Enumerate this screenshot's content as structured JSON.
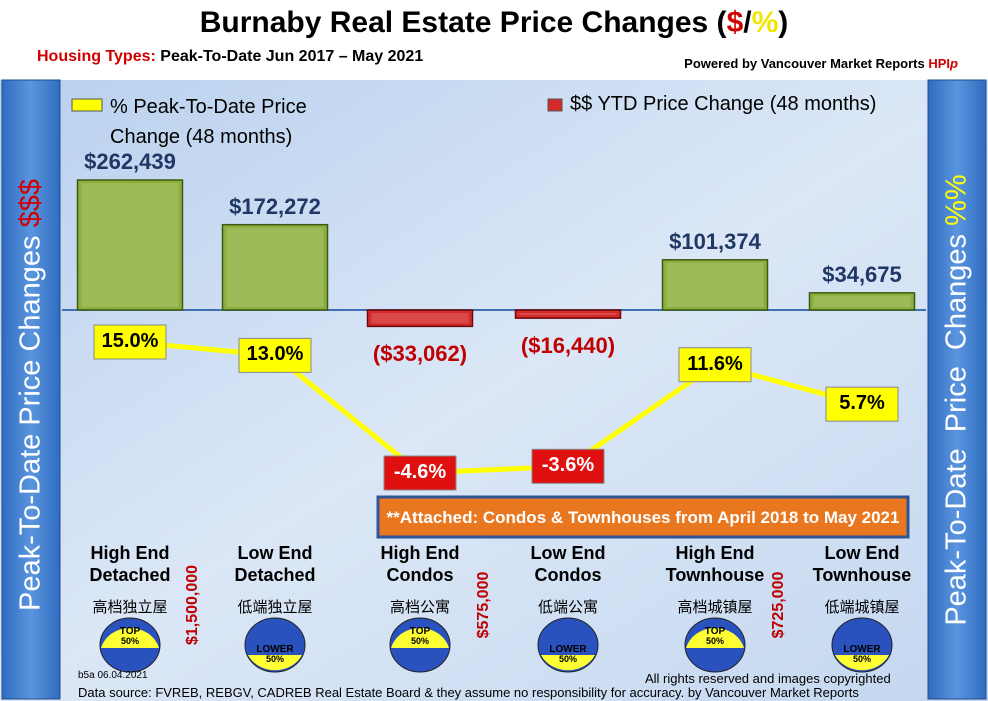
{
  "chart_data": {
    "type": "combo",
    "title": [
      "Burnaby Real Estate Price Changes (",
      "$",
      "/",
      "%",
      ")"
    ],
    "subtitle": [
      "Housing Types:",
      " Peak-To-Date Jun 2017 – May 2021"
    ],
    "credit": [
      "Powered by ",
      "Vancouver Market Reports",
      " HPI",
      "p"
    ],
    "left_axis_label": [
      "Peak-To-Date Price Changes ",
      "$$$"
    ],
    "right_axis_label": [
      "Peak-To-Date  Price  Changes ",
      "%%"
    ],
    "categories": [
      [
        "High End",
        "Detached"
      ],
      [
        "Low End",
        "Detached"
      ],
      [
        "High End",
        "Condos"
      ],
      [
        "Low End",
        "Condos"
      ],
      [
        "High End",
        "Townhouse"
      ],
      [
        "Low End",
        "Townhouse"
      ]
    ],
    "categories_zh": [
      "高档独立屋",
      "低端独立屋",
      "高档公寓",
      "低端公寓",
      "高档城镇屋",
      "低端城镇屋"
    ],
    "badges": [
      [
        "TOP",
        "50%"
      ],
      [
        "LOWER",
        "50%"
      ],
      [
        "TOP",
        "50%"
      ],
      [
        "LOWER",
        "50%"
      ],
      [
        "TOP",
        "50%"
      ],
      [
        "LOWER",
        "50%"
      ]
    ],
    "price_thresholds": [
      "$1,500,000",
      "$575,000",
      "$725,000"
    ],
    "series": [
      {
        "name": "% Peak-To-Date Price Change (48 months)",
        "type": "line",
        "color": "#ffff00",
        "values": [
          15.0,
          13.0,
          -4.6,
          -3.6,
          11.6,
          5.7
        ],
        "value_labels": [
          "15.0%",
          "13.0%",
          "-4.6%",
          "-3.6%",
          "11.6%",
          "5.7%"
        ]
      },
      {
        "name": "$$ YTD Price Change (48 months)",
        "type": "bar",
        "color": "#d42a2a",
        "positive_color": "#8cae3c",
        "values": [
          262439,
          172272,
          -33062,
          -16440,
          101374,
          34675
        ],
        "value_labels": [
          "$262,439",
          "$172,272",
          "($33,062)",
          "($16,440)",
          "$101,374",
          "$34,675"
        ]
      }
    ],
    "annotation": "**Attached: Condos & Townhouses from April 2018 to May 2021",
    "version": "b5a 06.04.2021",
    "copyright": "All rights reserved and  images copyrighted",
    "source": "Data source: FVREB, REBGV, CADREB Real Estate Board & they assume no responsibility for accuracy. by Vancouver Market Reports"
  }
}
